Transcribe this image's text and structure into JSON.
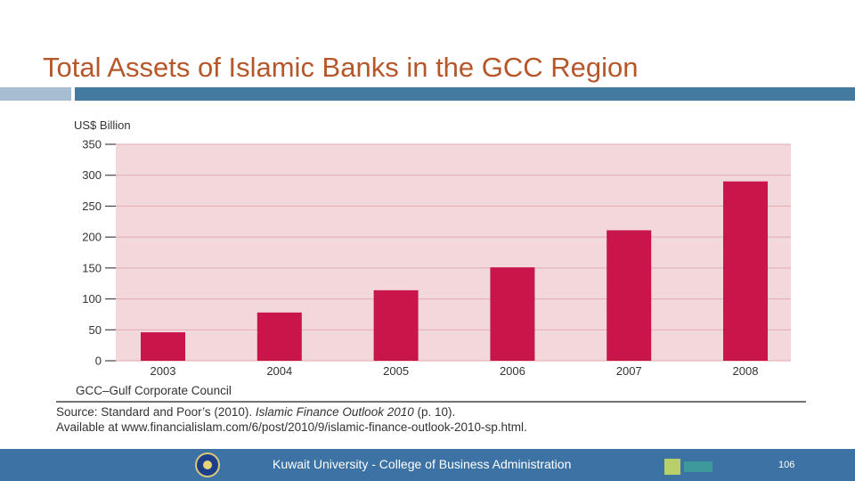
{
  "slide": {
    "title": "Total Assets of Islamic Banks  in the GCC Region",
    "footer_text": "Kuwait University - College of Business Administration",
    "page_number": "106"
  },
  "colors": {
    "title": "#b5572a",
    "bar": "#c8164a",
    "plot_background": "#f2d8da",
    "footer": "#3d73a4"
  },
  "chart_data": {
    "type": "bar",
    "ylabel": "US$ Billion",
    "categories": [
      "2003",
      "2004",
      "2005",
      "2006",
      "2007",
      "2008"
    ],
    "values": [
      46,
      78,
      114,
      151,
      211,
      290
    ],
    "ylim": [
      0,
      350
    ],
    "yticks": [
      "0",
      "50",
      "100",
      "150",
      "200",
      "250",
      "300",
      "350"
    ],
    "ytick_values": [
      0,
      50,
      100,
      150,
      200,
      250,
      300,
      350
    ],
    "grid": true,
    "note": "GCC–Gulf Corporate Council",
    "source_line1_a": "Source: Standard and Poor’s (2010). ",
    "source_line1_b": "Islamic Finance Outlook 2010",
    "source_line1_c": " (p. 10).",
    "source_line2": "Available at www.financialislam.com/6/post/2010/9/islamic-finance-outlook-2010-sp.html."
  }
}
